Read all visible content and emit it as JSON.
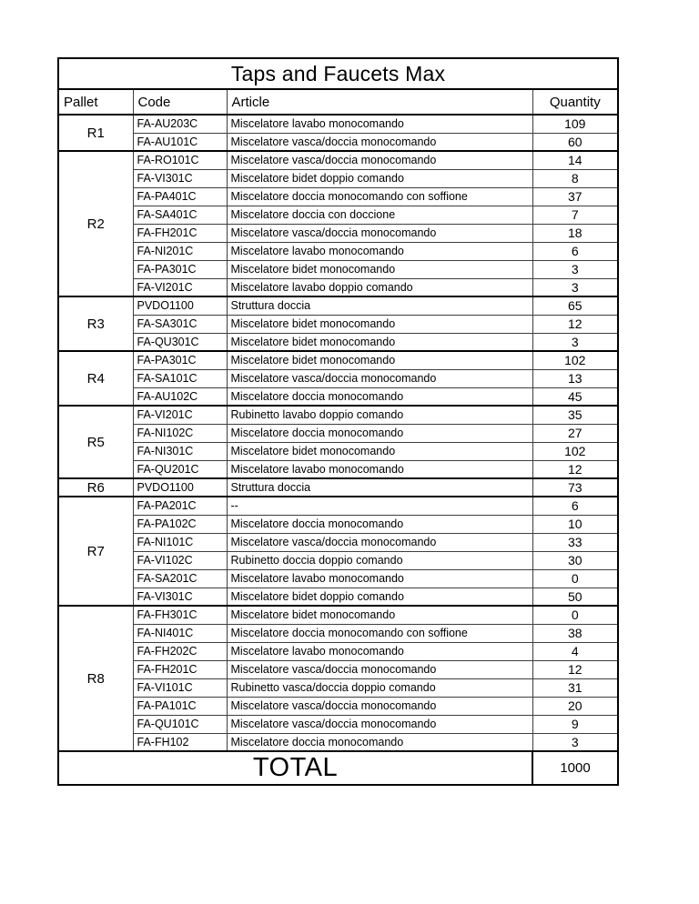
{
  "title": "Taps and Faucets Max",
  "columns": [
    "Pallet",
    "Code",
    "Article",
    "Quantity"
  ],
  "groups": [
    {
      "pallet": "R1",
      "rows": [
        {
          "code": "FA-AU203C",
          "article": "Miscelatore lavabo monocomando",
          "quantity": 109
        },
        {
          "code": "FA-AU101C",
          "article": "Miscelatore vasca/doccia monocomando",
          "quantity": 60
        }
      ]
    },
    {
      "pallet": "R2",
      "rows": [
        {
          "code": "FA-RO101C",
          "article": "Miscelatore vasca/doccia monocomando",
          "quantity": 14
        },
        {
          "code": "FA-VI301C",
          "article": "Miscelatore bidet doppio comando",
          "quantity": 8
        },
        {
          "code": "FA-PA401C",
          "article": "Miscelatore doccia monocomando con soffione",
          "quantity": 37
        },
        {
          "code": "FA-SA401C",
          "article": "Miscelatore doccia con doccione",
          "quantity": 7
        },
        {
          "code": "FA-FH201C",
          "article": "Miscelatore vasca/doccia monocomando",
          "quantity": 18
        },
        {
          "code": "FA-NI201C",
          "article": "Miscelatore lavabo monocomando",
          "quantity": 6
        },
        {
          "code": "FA-PA301C",
          "article": "Miscelatore bidet monocomando",
          "quantity": 3
        },
        {
          "code": "FA-VI201C",
          "article": "Miscelatore lavabo doppio comando",
          "quantity": 3
        }
      ]
    },
    {
      "pallet": "R3",
      "rows": [
        {
          "code": "PVDO1100",
          "article": "Struttura doccia",
          "quantity": 65
        },
        {
          "code": "FA-SA301C",
          "article": "Miscelatore bidet monocomando",
          "quantity": 12
        },
        {
          "code": "FA-QU301C",
          "article": "Miscelatore bidet monocomando",
          "quantity": 3
        }
      ]
    },
    {
      "pallet": "R4",
      "rows": [
        {
          "code": "FA-PA301C",
          "article": "Miscelatore bidet monocomando",
          "quantity": 102
        },
        {
          "code": "FA-SA101C",
          "article": "Miscelatore vasca/doccia monocomando",
          "quantity": 13
        },
        {
          "code": "FA-AU102C",
          "article": "Miscelatore doccia monocomando",
          "quantity": 45
        }
      ]
    },
    {
      "pallet": "R5",
      "rows": [
        {
          "code": "FA-VI201C",
          "article": "Rubinetto lavabo doppio comando",
          "quantity": 35
        },
        {
          "code": "FA-NI102C",
          "article": "Miscelatore doccia monocomando",
          "quantity": 27
        },
        {
          "code": "FA-NI301C",
          "article": "Miscelatore bidet monocomando",
          "quantity": 102
        },
        {
          "code": "FA-QU201C",
          "article": "Miscelatore lavabo monocomando",
          "quantity": 12
        }
      ]
    },
    {
      "pallet": "R6",
      "rows": [
        {
          "code": "PVDO1100",
          "article": "Struttura doccia",
          "quantity": 73
        }
      ]
    },
    {
      "pallet": "R7",
      "rows": [
        {
          "code": "FA-PA201C",
          "article": "--",
          "quantity": 6
        },
        {
          "code": "FA-PA102C",
          "article": "Miscelatore doccia monocomando",
          "quantity": 10
        },
        {
          "code": "FA-NI101C",
          "article": "Miscelatore vasca/doccia monocomando",
          "quantity": 33
        },
        {
          "code": "FA-VI102C",
          "article": "Rubinetto doccia doppio comando",
          "quantity": 30
        },
        {
          "code": "FA-SA201C",
          "article": "Miscelatore lavabo monocomando",
          "quantity": 0
        },
        {
          "code": "FA-VI301C",
          "article": "Miscelatore bidet doppio comando",
          "quantity": 50
        }
      ]
    },
    {
      "pallet": "R8",
      "rows": [
        {
          "code": "FA-FH301C",
          "article": "Miscelatore bidet monocomando",
          "quantity": 0
        },
        {
          "code": "FA-NI401C",
          "article": "Miscelatore doccia monocomando con soffione",
          "quantity": 38
        },
        {
          "code": "FA-FH202C",
          "article": "Miscelatore lavabo monocomando",
          "quantity": 4
        },
        {
          "code": "FA-FH201C",
          "article": "Miscelatore vasca/doccia monocomando",
          "quantity": 12
        },
        {
          "code": "FA-VI101C",
          "article": "Rubinetto vasca/doccia doppio comando",
          "quantity": 31
        },
        {
          "code": "FA-PA101C",
          "article": "Miscelatore vasca/doccia monocomando",
          "quantity": 20
        },
        {
          "code": "FA-QU101C",
          "article": "Miscelatore vasca/doccia monocomando",
          "quantity": 9
        },
        {
          "code": "FA-FH102",
          "article": "Miscelatore doccia monocomando",
          "quantity": 3
        }
      ]
    }
  ],
  "total": {
    "label": "TOTAL",
    "quantity": 1000
  }
}
